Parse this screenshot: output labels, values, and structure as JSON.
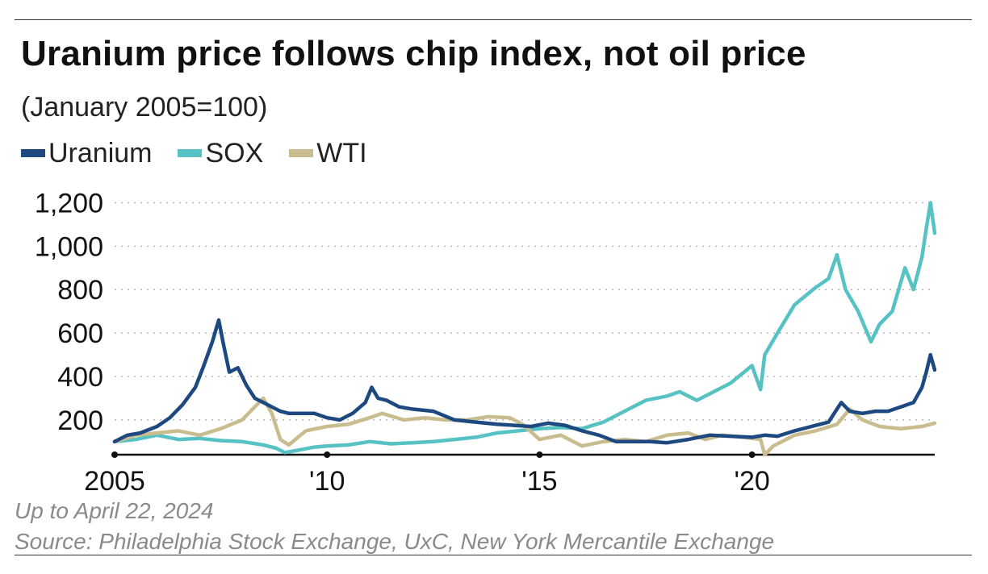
{
  "header": {
    "title": "Uranium price follows chip index, not oil price",
    "subtitle": "(January 2005=100)"
  },
  "footer": {
    "date_note": "Up to April 22, 2024",
    "source": "Source: Philadelphia Stock Exchange, UxC, New York Mercantile Exchange"
  },
  "chart_data": {
    "type": "line",
    "title": "Uranium price follows chip index, not oil price",
    "subtitle": "(January 2005=100)",
    "xlabel": "",
    "ylabel": "",
    "xlim": [
      2005.0,
      2024.3
    ],
    "ylim": [
      40,
      1250
    ],
    "x_ticks": [
      2005,
      2010,
      2015,
      2020
    ],
    "x_tick_labels": [
      "2005",
      "'10",
      "'15",
      "'20"
    ],
    "y_ticks": [
      200,
      400,
      600,
      800,
      1000,
      1200
    ],
    "y_tick_labels": [
      "200",
      "400",
      "600",
      "800",
      "1,000",
      "1,200"
    ],
    "grid": "horizontal dotted",
    "legend_position": "top-left",
    "series": [
      {
        "name": "Uranium",
        "color": "#1d4880",
        "x": [
          2005.0,
          2005.3,
          2005.6,
          2006.0,
          2006.3,
          2006.6,
          2006.9,
          2007.1,
          2007.3,
          2007.45,
          2007.55,
          2007.7,
          2007.9,
          2008.1,
          2008.3,
          2008.5,
          2008.7,
          2008.9,
          2009.1,
          2009.4,
          2009.7,
          2010.0,
          2010.3,
          2010.6,
          2010.9,
          2011.05,
          2011.2,
          2011.4,
          2011.7,
          2012.0,
          2012.5,
          2013.0,
          2013.5,
          2014.0,
          2014.4,
          2014.8,
          2015.2,
          2015.6,
          2016.0,
          2016.4,
          2016.8,
          2017.2,
          2017.6,
          2018.0,
          2018.5,
          2019.0,
          2019.5,
          2020.0,
          2020.3,
          2020.6,
          2021.0,
          2021.4,
          2021.8,
          2022.1,
          2022.3,
          2022.6,
          2022.9,
          2023.2,
          2023.5,
          2023.8,
          2024.0,
          2024.1,
          2024.2,
          2024.3
        ],
        "values": [
          100,
          130,
          140,
          170,
          210,
          270,
          350,
          450,
          560,
          660,
          560,
          420,
          440,
          360,
          300,
          280,
          260,
          240,
          230,
          230,
          230,
          210,
          200,
          230,
          280,
          350,
          300,
          290,
          260,
          250,
          240,
          200,
          190,
          180,
          175,
          170,
          185,
          175,
          150,
          130,
          100,
          100,
          100,
          95,
          110,
          130,
          125,
          120,
          130,
          125,
          150,
          170,
          190,
          280,
          240,
          230,
          240,
          240,
          260,
          280,
          350,
          420,
          500,
          430
        ]
      },
      {
        "name": "SOX",
        "color": "#57c2c4",
        "x": [
          2005.0,
          2005.5,
          2006.0,
          2006.5,
          2007.0,
          2007.5,
          2008.0,
          2008.5,
          2008.8,
          2009.0,
          2009.3,
          2009.7,
          2010.0,
          2010.5,
          2011.0,
          2011.5,
          2012.0,
          2012.5,
          2013.0,
          2013.5,
          2014.0,
          2014.5,
          2015.0,
          2015.5,
          2016.0,
          2016.5,
          2017.0,
          2017.5,
          2018.0,
          2018.3,
          2018.7,
          2019.0,
          2019.5,
          2020.0,
          2020.2,
          2020.3,
          2020.6,
          2021.0,
          2021.5,
          2021.8,
          2022.0,
          2022.2,
          2022.5,
          2022.8,
          2023.0,
          2023.3,
          2023.6,
          2023.8,
          2024.0,
          2024.1,
          2024.2,
          2024.3
        ],
        "values": [
          100,
          110,
          130,
          110,
          115,
          105,
          100,
          85,
          70,
          50,
          60,
          75,
          80,
          85,
          100,
          90,
          95,
          100,
          110,
          120,
          140,
          150,
          160,
          165,
          160,
          190,
          240,
          290,
          310,
          330,
          290,
          320,
          370,
          450,
          340,
          500,
          600,
          730,
          810,
          850,
          960,
          800,
          700,
          560,
          640,
          700,
          900,
          800,
          950,
          1080,
          1200,
          1060
        ]
      },
      {
        "name": "WTI",
        "color": "#c9bd8f",
        "x": [
          2005.0,
          2005.5,
          2006.0,
          2006.5,
          2007.0,
          2007.5,
          2008.0,
          2008.3,
          2008.5,
          2008.7,
          2008.9,
          2009.1,
          2009.5,
          2010.0,
          2010.5,
          2011.0,
          2011.3,
          2011.8,
          2012.3,
          2012.8,
          2013.3,
          2013.8,
          2014.3,
          2014.6,
          2015.0,
          2015.5,
          2016.0,
          2016.5,
          2017.0,
          2017.5,
          2018.0,
          2018.5,
          2018.9,
          2019.3,
          2019.8,
          2020.2,
          2020.3,
          2020.5,
          2021.0,
          2021.5,
          2022.0,
          2022.3,
          2022.6,
          2023.0,
          2023.5,
          2024.0,
          2024.3
        ],
        "values": [
          100,
          130,
          140,
          150,
          130,
          160,
          200,
          260,
          300,
          230,
          110,
          85,
          150,
          170,
          180,
          210,
          230,
          200,
          210,
          200,
          200,
          215,
          210,
          180,
          110,
          130,
          80,
          100,
          110,
          100,
          130,
          140,
          110,
          130,
          120,
          110,
          40,
          80,
          130,
          150,
          180,
          250,
          200,
          170,
          160,
          170,
          185
        ]
      }
    ]
  }
}
